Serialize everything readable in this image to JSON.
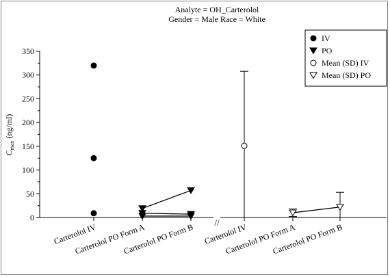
{
  "chart_data": {
    "type": "scatter",
    "title_lines": [
      "Analyte = OH_Carterolol",
      "Gender = Male  Race = White"
    ],
    "ylabel": {
      "base": "C",
      "sub": "max",
      "rest": " (ng/ml)"
    },
    "ylim": [
      0,
      350
    ],
    "yticks": [
      "0",
      "50",
      "100",
      "150",
      "200",
      "250",
      "300",
      "350"
    ],
    "categories_left": [
      "Carterolol IV",
      "Carterolol PO Form A",
      "Carterolol PO Form B"
    ],
    "categories_right": [
      "Carterolol IV",
      "Carterolol PO Form A",
      "Carterolol PO Form B"
    ],
    "axis_break": "//",
    "legend": {
      "placement": "top-right",
      "entries": [
        {
          "label": "IV",
          "marker": "filled-circle"
        },
        {
          "label": "PO",
          "marker": "filled-triangle-down"
        },
        {
          "label": "Mean (SD) IV",
          "marker": "open-circle"
        },
        {
          "label": "Mean (SD) PO",
          "marker": "open-triangle-down"
        }
      ]
    },
    "individual_iv": {
      "category": "Carterolol IV",
      "values": [
        320,
        125,
        9
      ]
    },
    "individual_po": [
      {
        "values": {
          "Carterolol PO Form A": 19,
          "Carterolol PO Form B": 57
        }
      },
      {
        "values": {
          "Carterolol PO Form A": 9,
          "Carterolol PO Form B": 7
        }
      },
      {
        "values": {
          "Carterolol PO Form A": 3,
          "Carterolol PO Form B": 3
        }
      }
    ],
    "mean_iv": {
      "category": "Carterolol IV",
      "mean": 151,
      "sd": 157
    },
    "mean_po": [
      {
        "category": "Carterolol PO Form A",
        "mean": 10,
        "sd": 8
      },
      {
        "category": "Carterolol PO Form B",
        "mean": 22,
        "sd": 31
      }
    ],
    "grid": false,
    "colors": {
      "marker": "#000000",
      "axis": "#000000",
      "frame": "#7f7f7f"
    }
  }
}
